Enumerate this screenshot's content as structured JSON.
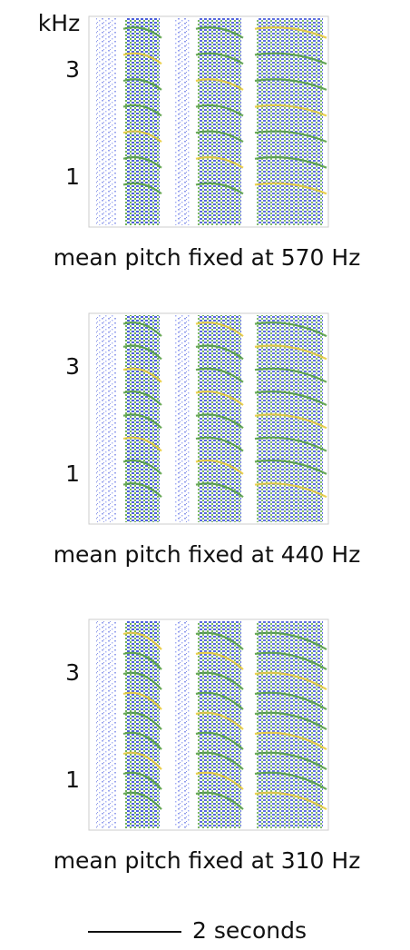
{
  "y_unit": "kHz",
  "panels": [
    {
      "y_ticks": [
        "3",
        "1"
      ],
      "caption": "mean pitch fixed at 570 Hz"
    },
    {
      "y_ticks": [
        "3",
        "1"
      ],
      "caption": "mean pitch fixed at 440 Hz"
    },
    {
      "y_ticks": [
        "3",
        "1"
      ],
      "caption": "mean pitch fixed at 310 Hz"
    }
  ],
  "scale_bar": "2 seconds"
}
